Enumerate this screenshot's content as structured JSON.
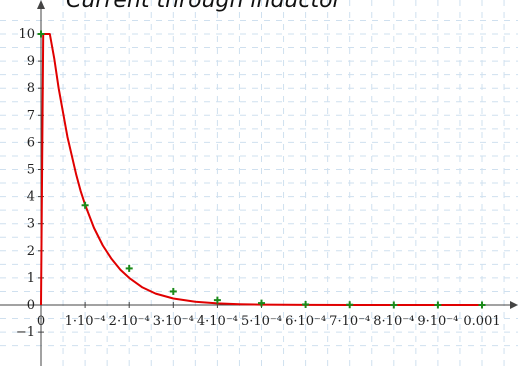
{
  "chart_data": {
    "type": "line",
    "title": "Current through inductor",
    "xlim": [
      0,
      0.00109
    ],
    "ylim": [
      -1.6,
      10.9
    ],
    "grid": true,
    "x_ticks": [
      {
        "value": 0,
        "label": "0"
      },
      {
        "value": 0.0001,
        "label": "1·10⁻⁴"
      },
      {
        "value": 0.0002,
        "label": "2·10⁻⁴"
      },
      {
        "value": 0.0003,
        "label": "3·10⁻⁴"
      },
      {
        "value": 0.0004,
        "label": "4·10⁻⁴"
      },
      {
        "value": 0.0005,
        "label": "5·10⁻⁴"
      },
      {
        "value": 0.0006,
        "label": "6·10⁻⁴"
      },
      {
        "value": 0.0007,
        "label": "7·10⁻⁴"
      },
      {
        "value": 0.0008,
        "label": "8·10⁻⁴"
      },
      {
        "value": 0.0009,
        "label": "9·10⁻⁴"
      },
      {
        "value": 0.001,
        "label": "0.001"
      }
    ],
    "y_ticks": [
      {
        "value": -1,
        "label": "−1"
      },
      {
        "value": 0,
        "label": "0"
      },
      {
        "value": 1,
        "label": "1"
      },
      {
        "value": 2,
        "label": "2"
      },
      {
        "value": 3,
        "label": "3"
      },
      {
        "value": 4,
        "label": "4"
      },
      {
        "value": 5,
        "label": "5"
      },
      {
        "value": 6,
        "label": "6"
      },
      {
        "value": 7,
        "label": "7"
      },
      {
        "value": 8,
        "label": "8"
      },
      {
        "value": 9,
        "label": "9"
      },
      {
        "value": 10,
        "label": "10"
      }
    ],
    "series": [
      {
        "type": "line",
        "color": "#e00000",
        "x": [
          0,
          5e-06,
          1e-05,
          1.5e-05,
          2e-05,
          3e-05,
          4e-05,
          5e-05,
          6e-05,
          7e-05,
          8e-05,
          9e-05,
          0.0001,
          0.00012,
          0.00014,
          0.00016,
          0.00018,
          0.0002,
          0.00023,
          0.00026,
          0.0003,
          0.00035,
          0.0004,
          0.00045,
          0.0005,
          0.0006,
          0.0007,
          0.0008,
          0.0009,
          0.001
        ],
        "y": [
          0,
          10,
          10,
          10,
          10,
          9.1,
          8.0,
          7.1,
          6.2,
          5.5,
          4.8,
          4.2,
          3.7,
          2.85,
          2.2,
          1.7,
          1.3,
          1.0,
          0.65,
          0.42,
          0.24,
          0.12,
          0.06,
          0.03,
          0.015,
          0.005,
          0.002,
          0.001,
          0.0005,
          0.0002
        ]
      },
      {
        "type": "scatter",
        "color": "#1a8a1a",
        "marker": "plus",
        "x": [
          0,
          0.0001,
          0.0002,
          0.0003,
          0.0004,
          0.0005,
          0.0006,
          0.0007,
          0.0008,
          0.0009,
          0.001
        ],
        "y": [
          10,
          3.68,
          1.35,
          0.5,
          0.18,
          0.07,
          0.02,
          0.01,
          0.0,
          0.0,
          0.0
        ]
      }
    ]
  }
}
